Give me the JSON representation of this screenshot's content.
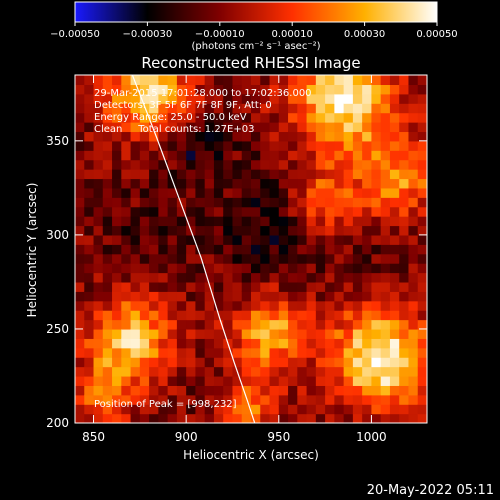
{
  "chart_data": {
    "type": "heatmap",
    "title": "Reconstructed RHESSI Image",
    "xlabel": "Heliocentric X (arcsec)",
    "ylabel": "Heliocentric Y (arcsec)",
    "xlim": [
      840,
      1030
    ],
    "ylim": [
      200,
      385
    ],
    "x_ticks": [
      850,
      900,
      950,
      1000
    ],
    "y_ticks": [
      200,
      250,
      300,
      350
    ],
    "x_tick_labels": [
      "850",
      "900",
      "950",
      "1000"
    ],
    "y_tick_labels": [
      "200",
      "250",
      "300",
      "350"
    ],
    "colorbar": {
      "range": [
        -0.0005,
        0.0005
      ],
      "ticks": [
        -0.0005,
        -0.0003,
        -0.0001,
        0.0001,
        0.0003,
        0.0005
      ],
      "tick_labels": [
        "−0.00050",
        "−0.00030",
        "−0.00010",
        "0.00010",
        "0.00030",
        "0.00050"
      ],
      "units": "(photons cm⁻² s⁻¹ asec⁻²)",
      "colors": [
        "#1a1aff",
        "#000000",
        "#800000",
        "#ff3000",
        "#ffb000",
        "#ffffff"
      ]
    },
    "annotations": [
      "29-Mar-2015 17:01:28.000 to 17:02:36.000",
      "Detectors: 3F 5F 6F 7F 8F 9F, Att: 0",
      "Energy Range: 25.0 - 50.0 keV",
      "Clean     Total counts: 1.27E+03",
      "Position of Peak = [998,232]"
    ],
    "peak": {
      "x": 998,
      "y": 232
    },
    "limb_curve": {
      "x": [
        871,
        884,
        896,
        908,
        918,
        926,
        933,
        937
      ],
      "y": [
        385,
        352,
        320,
        288,
        256,
        232,
        212,
        200
      ]
    },
    "regions": [
      {
        "x": 880,
        "y": 375,
        "r": 22,
        "v": 0.00042
      },
      {
        "x": 985,
        "y": 372,
        "r": 28,
        "v": 0.00045
      },
      {
        "x": 870,
        "y": 245,
        "r": 22,
        "v": 0.00036
      },
      {
        "x": 945,
        "y": 248,
        "r": 20,
        "v": 0.0003
      },
      {
        "x": 1005,
        "y": 235,
        "r": 26,
        "v": 0.0005
      },
      {
        "x": 1015,
        "y": 330,
        "r": 22,
        "v": 0.00022
      },
      {
        "x": 975,
        "y": 318,
        "r": 18,
        "v": 0.00018
      },
      {
        "x": 935,
        "y": 210,
        "r": 16,
        "v": 0.00018
      },
      {
        "x": 855,
        "y": 215,
        "r": 18,
        "v": 0.00015
      },
      {
        "x": 905,
        "y": 350,
        "r": 18,
        "v": -0.0003
      },
      {
        "x": 945,
        "y": 305,
        "r": 28,
        "v": -0.00026
      },
      {
        "x": 880,
        "y": 300,
        "r": 22,
        "v": -0.0002
      },
      {
        "x": 1000,
        "y": 295,
        "r": 16,
        "v": -0.00016
      },
      {
        "x": 905,
        "y": 265,
        "r": 14,
        "v": -0.00012
      }
    ]
  },
  "footer": {
    "timestamp": "20-May-2022 05:11"
  }
}
